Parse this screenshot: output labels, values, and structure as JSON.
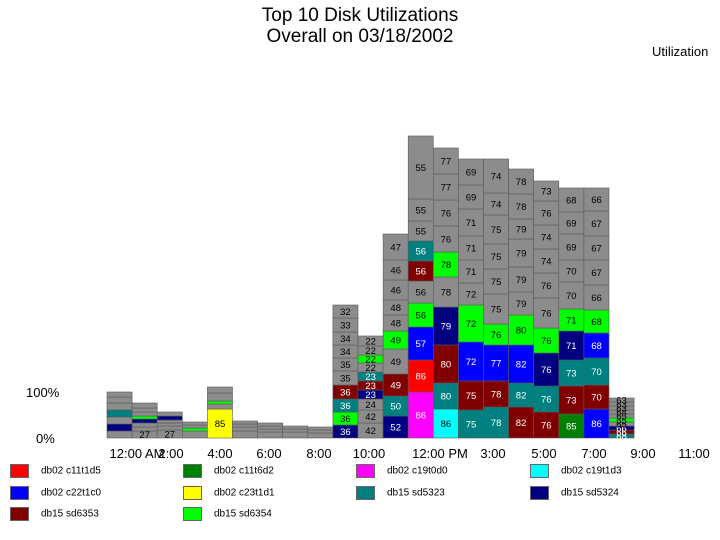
{
  "title_line1": "Top 10 Disk Utilizations",
  "title_line2": "Overall on 03/18/2002",
  "utilization_label": "Utilization",
  "colors": {
    "gray": "#8c8c8c",
    "gray_band": "#9a9a9a",
    "red": "#ff0000",
    "blue": "#0000ff",
    "maroon": "#800000",
    "green": "#008000",
    "yellow": "#ffff00",
    "lime": "#00ff00",
    "magenta": "#ff00ff",
    "teal": "#008080",
    "cyan": "#00ffff",
    "navy": "#000080"
  },
  "chart_data": {
    "type": "bar",
    "stacked": true,
    "title": "Top 10 Disk Utilizations\nOverall on 03/18/2002",
    "xlabel": "",
    "ylabel": "Utilization",
    "y_tick_labels": [
      "0%",
      "100%"
    ],
    "x_tick_labels": [
      "12:00 AM",
      "2:00",
      "4:00",
      "6:00",
      "8:00",
      "10:00",
      "12:00 PM",
      "3:00",
      "5:00",
      "7:00",
      "9:00",
      "11:00"
    ],
    "legend_position": "bottom",
    "legend": [
      {
        "label": "db02 c11t1d5",
        "color": "#ff0000"
      },
      {
        "label": "db02 c11t6d2",
        "color": "#008000"
      },
      {
        "label": "db02 c19t0d0",
        "color": "#ff00ff"
      },
      {
        "label": "db02 c19t1d3",
        "color": "#00ffff"
      },
      {
        "label": "db02 c22t1c0",
        "color": "#0000ff"
      },
      {
        "label": "db02 c23t1d1",
        "color": "#ffff00"
      },
      {
        "label": "db15 sd5323",
        "color": "#008080"
      },
      {
        "label": "db15 sd5324",
        "color": "#000080"
      },
      {
        "label": "db15 sd6353",
        "color": "#800000"
      },
      {
        "label": "db15 sd6354",
        "color": "#00ff00"
      }
    ],
    "bars": [
      {
        "segments": [
          {
            "c": "gray",
            "v": ""
          },
          {
            "c": "navy",
            "v": ""
          },
          {
            "c": "gray",
            "v": ""
          },
          {
            "c": "teal",
            "v": ""
          },
          {
            "c": "gray",
            "v": ""
          },
          {
            "c": "gray",
            "v": ""
          },
          {
            "c": "gray",
            "v": ""
          }
        ]
      },
      {
        "segments": [
          {
            "c": "gray",
            "v": "27"
          },
          {
            "c": "gray",
            "v": ""
          },
          {
            "c": "gray",
            "v": ""
          },
          {
            "c": "navy",
            "v": ""
          },
          {
            "c": "lime",
            "v": ""
          },
          {
            "c": "gray",
            "v": ""
          },
          {
            "c": "gray",
            "v": ""
          },
          {
            "c": "gray",
            "v": ""
          }
        ]
      },
      {
        "segments": [
          {
            "c": "gray",
            "v": "27"
          },
          {
            "c": "gray",
            "v": ""
          },
          {
            "c": "gray",
            "v": ""
          },
          {
            "c": "gray",
            "v": ""
          },
          {
            "c": "navy",
            "v": ""
          },
          {
            "c": "gray",
            "v": ""
          }
        ]
      },
      {
        "segments": [
          {
            "c": "gray",
            "v": ""
          },
          {
            "c": "lime",
            "v": ""
          },
          {
            "c": "gray",
            "v": ""
          },
          {
            "c": "gray",
            "v": ""
          }
        ]
      },
      {
        "segments": [
          {
            "c": "yellow",
            "v": "85"
          },
          {
            "c": "gray",
            "v": ""
          },
          {
            "c": "lime",
            "v": ""
          },
          {
            "c": "gray",
            "v": ""
          },
          {
            "c": "gray",
            "v": ""
          }
        ]
      },
      {
        "segments": [
          {
            "c": "gray",
            "v": ""
          },
          {
            "c": "gray",
            "v": ""
          },
          {
            "c": "gray",
            "v": ""
          },
          {
            "c": "gray",
            "v": ""
          }
        ]
      },
      {
        "segments": [
          {
            "c": "gray",
            "v": ""
          },
          {
            "c": "gray",
            "v": ""
          },
          {
            "c": "gray",
            "v": ""
          },
          {
            "c": "gray",
            "v": ""
          }
        ]
      },
      {
        "segments": [
          {
            "c": "gray",
            "v": ""
          },
          {
            "c": "gray",
            "v": ""
          },
          {
            "c": "gray",
            "v": ""
          }
        ]
      },
      {
        "segments": [
          {
            "c": "gray",
            "v": ""
          },
          {
            "c": "gray",
            "v": ""
          },
          {
            "c": "gray",
            "v": ""
          }
        ]
      },
      {
        "segments": [
          {
            "c": "navy",
            "v": "36"
          },
          {
            "c": "lime",
            "v": "36"
          },
          {
            "c": "teal",
            "v": "36"
          },
          {
            "c": "maroon",
            "v": "36"
          },
          {
            "c": "gray",
            "v": "35"
          },
          {
            "c": "gray",
            "v": "35"
          },
          {
            "c": "gray",
            "v": "34"
          },
          {
            "c": "gray",
            "v": "34"
          },
          {
            "c": "gray",
            "v": "33"
          },
          {
            "c": "gray",
            "v": "32"
          }
        ]
      },
      {
        "segments": [
          {
            "c": "gray",
            "v": "42"
          },
          {
            "c": "gray",
            "v": "42"
          },
          {
            "c": "gray",
            "v": "24"
          },
          {
            "c": "navy",
            "v": "23"
          },
          {
            "c": "maroon",
            "v": "23"
          },
          {
            "c": "teal",
            "v": "23"
          },
          {
            "c": "gray",
            "v": "22"
          },
          {
            "c": "lime",
            "v": "22"
          },
          {
            "c": "gray",
            "v": "22"
          },
          {
            "c": "gray",
            "v": "22"
          }
        ]
      },
      {
        "segments": [
          {
            "c": "navy",
            "v": "52"
          },
          {
            "c": "teal",
            "v": "50"
          },
          {
            "c": "maroon",
            "v": "49"
          },
          {
            "c": "gray",
            "v": "49"
          },
          {
            "c": "lime",
            "v": "49"
          },
          {
            "c": "gray",
            "v": "48"
          },
          {
            "c": "gray",
            "v": "48"
          },
          {
            "c": "gray",
            "v": "46"
          },
          {
            "c": "gray",
            "v": "46"
          },
          {
            "c": "gray",
            "v": "47"
          }
        ]
      },
      {
        "segments": [
          {
            "c": "magenta",
            "v": "86"
          },
          {
            "c": "red",
            "v": "86"
          },
          {
            "c": "blue",
            "v": "57"
          },
          {
            "c": "lime",
            "v": "56"
          },
          {
            "c": "gray",
            "v": "56"
          },
          {
            "c": "maroon",
            "v": "56"
          },
          {
            "c": "teal",
            "v": "56"
          },
          {
            "c": "gray",
            "v": "55"
          },
          {
            "c": "gray",
            "v": "55"
          },
          {
            "c": "gray",
            "v": "55"
          }
        ]
      },
      {
        "segments": [
          {
            "c": "cyan",
            "v": "86"
          },
          {
            "c": "teal",
            "v": "80"
          },
          {
            "c": "maroon",
            "v": "80"
          },
          {
            "c": "navy",
            "v": "79"
          },
          {
            "c": "gray",
            "v": "78"
          },
          {
            "c": "lime",
            "v": "78"
          },
          {
            "c": "gray",
            "v": "76"
          },
          {
            "c": "gray",
            "v": "76"
          },
          {
            "c": "gray",
            "v": "77"
          },
          {
            "c": "gray",
            "v": "77"
          }
        ]
      },
      {
        "segments": [
          {
            "c": "teal",
            "v": "75"
          },
          {
            "c": "maroon",
            "v": "75"
          },
          {
            "c": "blue",
            "v": "72"
          },
          {
            "c": "lime",
            "v": "72"
          },
          {
            "c": "gray",
            "v": "72"
          },
          {
            "c": "gray",
            "v": "71"
          },
          {
            "c": "gray",
            "v": "71"
          },
          {
            "c": "gray",
            "v": "71"
          },
          {
            "c": "gray",
            "v": "69"
          },
          {
            "c": "gray",
            "v": "69"
          }
        ]
      },
      {
        "segments": [
          {
            "c": "teal",
            "v": "78"
          },
          {
            "c": "maroon",
            "v": "78"
          },
          {
            "c": "blue",
            "v": "77"
          },
          {
            "c": "lime",
            "v": "76"
          },
          {
            "c": "gray",
            "v": "75"
          },
          {
            "c": "gray",
            "v": "75"
          },
          {
            "c": "gray",
            "v": "75"
          },
          {
            "c": "gray",
            "v": "75"
          },
          {
            "c": "gray",
            "v": "74"
          },
          {
            "c": "gray",
            "v": "74"
          }
        ]
      },
      {
        "segments": [
          {
            "c": "maroon",
            "v": "82"
          },
          {
            "c": "teal",
            "v": "82"
          },
          {
            "c": "blue",
            "v": "82"
          },
          {
            "c": "lime",
            "v": "80"
          },
          {
            "c": "gray",
            "v": "79"
          },
          {
            "c": "gray",
            "v": "79"
          },
          {
            "c": "gray",
            "v": "79"
          },
          {
            "c": "gray",
            "v": "79"
          },
          {
            "c": "gray",
            "v": "78"
          },
          {
            "c": "gray",
            "v": "78"
          }
        ]
      },
      {
        "segments": [
          {
            "c": "maroon",
            "v": "76"
          },
          {
            "c": "teal",
            "v": "76"
          },
          {
            "c": "navy",
            "v": "76"
          },
          {
            "c": "lime",
            "v": "76"
          },
          {
            "c": "gray",
            "v": "76"
          },
          {
            "c": "gray",
            "v": "76"
          },
          {
            "c": "gray",
            "v": "74"
          },
          {
            "c": "gray",
            "v": "74"
          },
          {
            "c": "gray",
            "v": "76"
          },
          {
            "c": "gray",
            "v": "73"
          }
        ]
      },
      {
        "segments": [
          {
            "c": "green",
            "v": "85"
          },
          {
            "c": "maroon",
            "v": "73"
          },
          {
            "c": "teal",
            "v": "73"
          },
          {
            "c": "navy",
            "v": "71"
          },
          {
            "c": "lime",
            "v": "71"
          },
          {
            "c": "gray",
            "v": "70"
          },
          {
            "c": "gray",
            "v": "70"
          },
          {
            "c": "gray",
            "v": "69"
          },
          {
            "c": "gray",
            "v": "69"
          },
          {
            "c": "gray",
            "v": "68"
          }
        ]
      },
      {
        "segments": [
          {
            "c": "blue",
            "v": "86"
          },
          {
            "c": "maroon",
            "v": "70"
          },
          {
            "c": "teal",
            "v": "70"
          },
          {
            "c": "blue",
            "v": "68"
          },
          {
            "c": "lime",
            "v": "68"
          },
          {
            "c": "gray",
            "v": "66"
          },
          {
            "c": "gray",
            "v": "67"
          },
          {
            "c": "gray",
            "v": "67"
          },
          {
            "c": "gray",
            "v": "67"
          },
          {
            "c": "gray",
            "v": "66"
          }
        ]
      },
      {
        "segments": [
          {
            "c": "teal",
            "v": "68"
          },
          {
            "c": "maroon",
            "v": "66"
          },
          {
            "c": "navy",
            "v": "66"
          },
          {
            "c": "gray",
            "v": "65"
          },
          {
            "c": "lime",
            "v": "65"
          },
          {
            "c": "gray",
            "v": "65"
          },
          {
            "c": "gray",
            "v": "64"
          },
          {
            "c": "gray",
            "v": "63"
          },
          {
            "c": "gray",
            "v": "63"
          },
          {
            "c": "gray",
            "v": "63"
          }
        ]
      }
    ]
  }
}
